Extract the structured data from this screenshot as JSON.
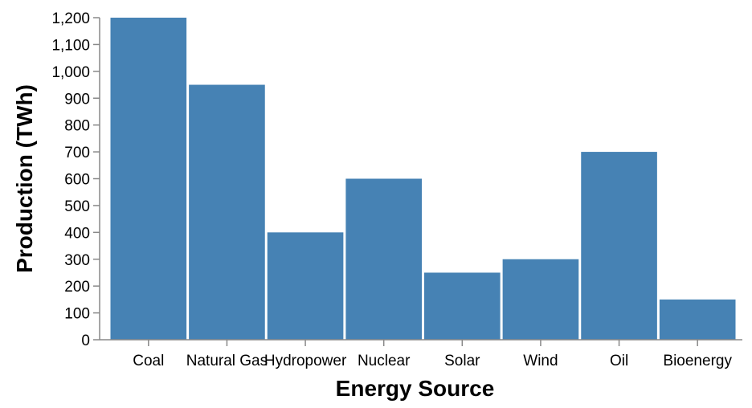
{
  "chart_data": {
    "type": "bar",
    "title": "",
    "xlabel": "Energy Source",
    "ylabel": "Production (TWh)",
    "categories": [
      "Coal",
      "Natural Gas",
      "Hydropower",
      "Nuclear",
      "Solar",
      "Wind",
      "Oil",
      "Bioenergy"
    ],
    "values": [
      1200,
      950,
      400,
      600,
      250,
      300,
      700,
      150
    ],
    "ylim": [
      0,
      1200
    ],
    "yticks": [
      0,
      100,
      200,
      300,
      400,
      500,
      600,
      700,
      800,
      900,
      1000,
      1100,
      1200
    ],
    "ytick_labels": [
      "0",
      "100",
      "200",
      "300",
      "400",
      "500",
      "600",
      "700",
      "800",
      "900",
      "1,000",
      "1,100",
      "1,200"
    ],
    "bar_color": "#4682b4",
    "grid": false,
    "legend": "none"
  }
}
